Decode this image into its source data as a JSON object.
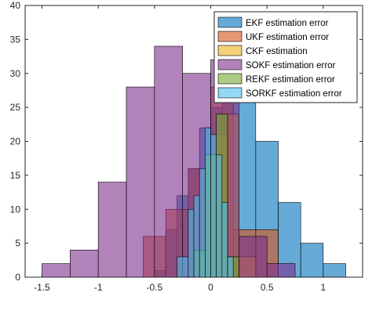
{
  "chart_data": {
    "type": "histogram",
    "xlim": [
      -1.65,
      1.35
    ],
    "ylim": [
      0,
      40
    ],
    "x_ticks": [
      -1.5,
      -1,
      -0.5,
      0,
      0.5,
      1
    ],
    "x_tick_labels": [
      "-1.5",
      "-1",
      "-0.5",
      "0",
      "0.5",
      "1"
    ],
    "y_ticks": [
      0,
      5,
      10,
      15,
      20,
      25,
      30,
      35,
      40
    ],
    "y_tick_labels": [
      "0",
      "5",
      "10",
      "15",
      "20",
      "25",
      "30",
      "35",
      "40"
    ],
    "grid": false,
    "legend_position": "top-right",
    "series": [
      {
        "name": "EKF estimation error",
        "color": "#0072BD",
        "bins": [
          {
            "x0": -0.5,
            "x1": -0.4,
            "count": 1
          },
          {
            "x0": -0.4,
            "x1": -0.3,
            "count": 7
          },
          {
            "x0": -0.3,
            "x1": -0.2,
            "count": 12
          },
          {
            "x0": -0.2,
            "x1": -0.1,
            "count": 16
          },
          {
            "x0": -0.1,
            "x1": 0.0,
            "count": 22
          },
          {
            "x0": 0.0,
            "x1": 0.1,
            "count": 25
          },
          {
            "x0": 0.1,
            "x1": 0.2,
            "count": 29
          },
          {
            "x0": 0.2,
            "x1": 0.4,
            "count": 27
          },
          {
            "x0": 0.4,
            "x1": 0.6,
            "count": 20
          },
          {
            "x0": 0.6,
            "x1": 0.8,
            "count": 11
          },
          {
            "x0": 0.8,
            "x1": 1.0,
            "count": 5
          },
          {
            "x0": 1.0,
            "x1": 1.2,
            "count": 2
          }
        ]
      },
      {
        "name": "UKF estimation error",
        "color": "#D95319",
        "bins": [
          {
            "x0": -0.6,
            "x1": -0.4,
            "count": 6
          },
          {
            "x0": -0.4,
            "x1": -0.2,
            "count": 10
          },
          {
            "x0": -0.2,
            "x1": 0.0,
            "count": 16
          },
          {
            "x0": 0.0,
            "x1": 0.2,
            "count": 28
          },
          {
            "x0": 0.2,
            "x1": 0.4,
            "count": 7
          },
          {
            "x0": 0.4,
            "x1": 0.6,
            "count": 7
          }
        ]
      },
      {
        "name": "CKF estimation",
        "color": "#EDB120",
        "bins": [
          {
            "x0": -0.05,
            "x1": 0.05,
            "count": 18
          },
          {
            "x0": 0.05,
            "x1": 0.15,
            "count": 21
          },
          {
            "x0": 0.15,
            "x1": 0.25,
            "count": 24
          },
          {
            "x0": 0.25,
            "x1": 0.4,
            "count": 3
          }
        ]
      },
      {
        "name": "SOKF estimation error",
        "color": "#7E2F8E",
        "bins": [
          {
            "x0": -1.5,
            "x1": -1.25,
            "count": 2
          },
          {
            "x0": -1.25,
            "x1": -1.0,
            "count": 4
          },
          {
            "x0": -1.0,
            "x1": -0.75,
            "count": 14
          },
          {
            "x0": -0.75,
            "x1": -0.5,
            "count": 28
          },
          {
            "x0": -0.5,
            "x1": -0.25,
            "count": 34
          },
          {
            "x0": -0.25,
            "x1": 0.0,
            "count": 30
          },
          {
            "x0": 0.0,
            "x1": 0.25,
            "count": 32
          },
          {
            "x0": 0.25,
            "x1": 0.5,
            "count": 6
          },
          {
            "x0": 0.5,
            "x1": 0.75,
            "count": 2
          }
        ]
      },
      {
        "name": "REKF estimation error",
        "color": "#77AC30",
        "bins": [
          {
            "x0": -0.15,
            "x1": -0.05,
            "count": 4
          },
          {
            "x0": -0.05,
            "x1": 0.05,
            "count": 18
          },
          {
            "x0": 0.05,
            "x1": 0.15,
            "count": 24
          },
          {
            "x0": 0.15,
            "x1": 0.25,
            "count": 3
          }
        ]
      },
      {
        "name": "SORKF estimation error",
        "color": "#4DBEEE",
        "bins": [
          {
            "x0": -0.3,
            "x1": -0.2,
            "count": 3
          },
          {
            "x0": -0.2,
            "x1": -0.15,
            "count": 10
          },
          {
            "x0": -0.15,
            "x1": -0.1,
            "count": 12
          },
          {
            "x0": -0.1,
            "x1": -0.05,
            "count": 16
          },
          {
            "x0": -0.05,
            "x1": 0.0,
            "count": 22
          },
          {
            "x0": 0.0,
            "x1": 0.05,
            "count": 21
          },
          {
            "x0": 0.05,
            "x1": 0.1,
            "count": 18
          },
          {
            "x0": 0.1,
            "x1": 0.15,
            "count": 11
          },
          {
            "x0": 0.15,
            "x1": 0.2,
            "count": 3
          }
        ]
      }
    ]
  }
}
